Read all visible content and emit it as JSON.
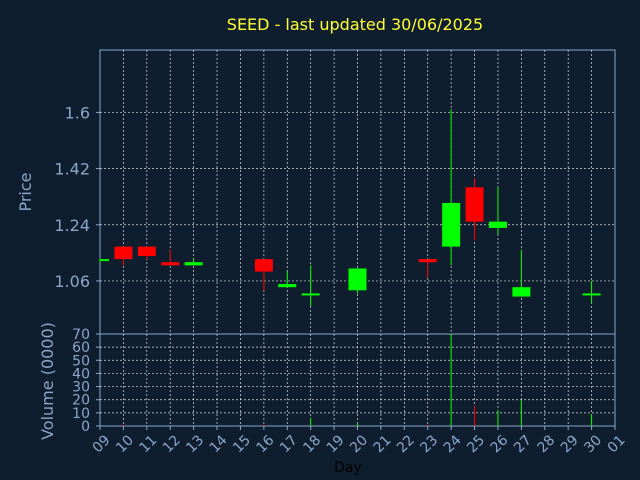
{
  "chart_data": {
    "type": "candlestick",
    "title": "SEED - last updated 30/06/2025",
    "price_ylabel": "Price",
    "volume_ylabel": "Volume (0000)",
    "xlabel": "Day",
    "x_ticks": [
      "09",
      "10",
      "11",
      "12",
      "13",
      "14",
      "15",
      "16",
      "17",
      "18",
      "19",
      "20",
      "21",
      "22",
      "23",
      "24",
      "25",
      "26",
      "27",
      "28",
      "29",
      "30",
      "01"
    ],
    "price_ticks": [
      1.06,
      1.24,
      1.42,
      1.6
    ],
    "price_ylim": [
      0.89,
      1.8
    ],
    "volume_ticks": [
      0,
      10,
      20,
      30,
      40,
      50,
      60,
      70
    ],
    "volume_ylim": [
      0,
      70
    ],
    "up_color": "#00ff00",
    "down_color": "#ff0000",
    "candles": [
      {
        "day": "09",
        "open": 1.13,
        "high": 1.13,
        "low": 1.12,
        "close": 1.13,
        "volume": 0
      },
      {
        "day": "10",
        "open": 1.17,
        "high": 1.17,
        "low": 1.11,
        "close": 1.13,
        "volume": 1
      },
      {
        "day": "11",
        "open": 1.17,
        "high": 1.17,
        "low": 1.13,
        "close": 1.14,
        "volume": 0
      },
      {
        "day": "12",
        "open": 1.12,
        "high": 1.16,
        "low": 1.11,
        "close": 1.11,
        "volume": 0
      },
      {
        "day": "13",
        "open": 1.11,
        "high": 1.13,
        "low": 1.11,
        "close": 1.12,
        "volume": 0
      },
      {
        "day": "16",
        "open": 1.13,
        "high": 1.13,
        "low": 1.03,
        "close": 1.09,
        "volume": 1
      },
      {
        "day": "17",
        "open": 1.04,
        "high": 1.09,
        "low": 1.04,
        "close": 1.05,
        "volume": 0
      },
      {
        "day": "18",
        "open": 1.02,
        "high": 1.11,
        "low": 0.98,
        "close": 1.02,
        "volume": 6
      },
      {
        "day": "20",
        "open": 1.03,
        "high": 1.1,
        "low": 1.02,
        "close": 1.1,
        "volume": 2
      },
      {
        "day": "23",
        "open": 1.13,
        "high": 1.13,
        "low": 1.07,
        "close": 1.12,
        "volume": 1
      },
      {
        "day": "24",
        "open": 1.17,
        "high": 1.61,
        "low": 1.11,
        "close": 1.31,
        "volume": 70
      },
      {
        "day": "25",
        "open": 1.36,
        "high": 1.39,
        "low": 1.19,
        "close": 1.25,
        "volume": 15
      },
      {
        "day": "26",
        "open": 1.23,
        "high": 1.36,
        "low": 1.21,
        "close": 1.25,
        "volume": 12
      },
      {
        "day": "27",
        "open": 1.01,
        "high": 1.16,
        "low": 1.01,
        "close": 1.04,
        "volume": 20
      },
      {
        "day": "30",
        "open": 1.02,
        "high": 1.06,
        "low": 0.99,
        "close": 1.02,
        "volume": 9
      }
    ]
  }
}
